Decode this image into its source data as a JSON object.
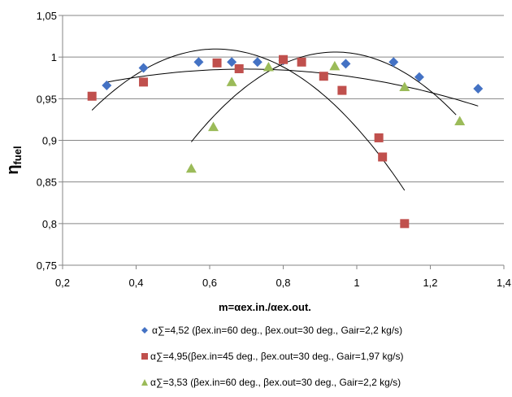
{
  "chart_data": {
    "type": "scatter",
    "xlabel": "m=αex.in./αex.out.",
    "ylabel_main": "η",
    "ylabel_sub": "fuel",
    "xlim": [
      0.2,
      1.4
    ],
    "ylim": [
      0.75,
      1.05
    ],
    "xticks": [
      0.2,
      0.4,
      0.6,
      0.8,
      1.0,
      1.2,
      1.4
    ],
    "xtick_labels": [
      "0,2",
      "0,4",
      "0,6",
      "0,8",
      "1",
      "1,2",
      "1,4"
    ],
    "yticks": [
      0.75,
      0.8,
      0.85,
      0.9,
      0.95,
      1.0,
      1.05
    ],
    "ytick_labels": [
      "0,75",
      "0,8",
      "0,85",
      "0,9",
      "0,95",
      "1",
      "1,05"
    ],
    "grid": "horizontal",
    "legend_position": "bottom",
    "series": [
      {
        "name": "α∑=4,52 (βex.in=60 deg., βex.out=30 deg., Gair=2,2 kg/s)",
        "marker": "diamond",
        "color": "#4472C4",
        "points": [
          [
            0.32,
            0.966
          ],
          [
            0.42,
            0.987
          ],
          [
            0.57,
            0.994
          ],
          [
            0.66,
            0.994
          ],
          [
            0.73,
            0.994
          ],
          [
            0.8,
            0.996
          ],
          [
            0.97,
            0.992
          ],
          [
            1.1,
            0.994
          ],
          [
            1.17,
            0.976
          ],
          [
            1.33,
            0.962
          ]
        ],
        "trend": {
          "coef": [
            0.9318,
            0.1543,
            -0.1107
          ],
          "x_range": [
            0.32,
            1.33
          ]
        }
      },
      {
        "name": "α∑=4,95(βex.in=45 deg., βex.out=30 deg., Gair=1,97 kg/s)",
        "marker": "square",
        "color": "#C0504D",
        "points": [
          [
            0.28,
            0.953
          ],
          [
            0.42,
            0.97
          ],
          [
            0.62,
            0.993
          ],
          [
            0.68,
            0.986
          ],
          [
            0.8,
            0.997
          ],
          [
            0.85,
            0.994
          ],
          [
            0.91,
            0.977
          ],
          [
            0.96,
            0.96
          ],
          [
            1.06,
            0.903
          ],
          [
            1.07,
            0.88
          ],
          [
            1.13,
            0.8
          ]
        ],
        "trend": {
          "coef": [
            0.7635,
            0.7975,
            -0.6459
          ],
          "x_range": [
            0.28,
            1.13
          ]
        }
      },
      {
        "name": "α∑=3,53 (βex.in=60 deg., βex.out=30 deg., Gair=2,2 kg/s)",
        "marker": "triangle",
        "color": "#9BBB59",
        "points": [
          [
            0.55,
            0.866
          ],
          [
            0.61,
            0.916
          ],
          [
            0.66,
            0.97
          ],
          [
            0.76,
            0.988
          ],
          [
            0.94,
            0.989
          ],
          [
            1.13,
            0.964
          ],
          [
            1.28,
            0.923
          ]
        ],
        "trend": {
          "coef": [
            0.3832,
            1.3222,
            -0.7017
          ],
          "x_range": [
            0.55,
            1.27
          ]
        }
      }
    ]
  }
}
